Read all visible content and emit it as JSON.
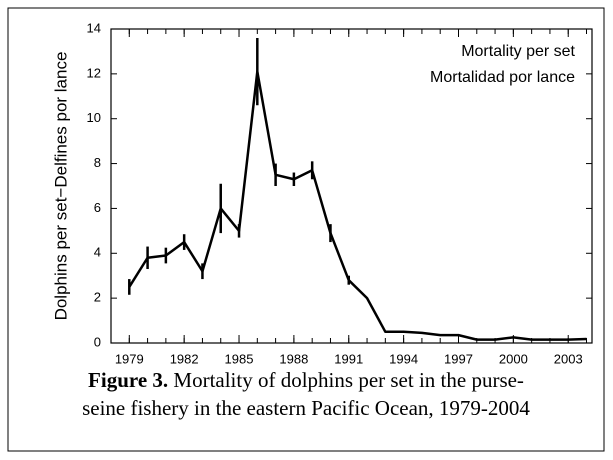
{
  "chart_data": {
    "type": "line",
    "ylabel": "Dolphins per set−Delfines por lance",
    "annotations": [
      "Mortality per set",
      "Mortalidad por lance"
    ],
    "caption_label": "Figure 3.",
    "caption_lines": [
      "Mortality of dolphins per set in the purse-",
      "seine fishery in the eastern Pacific Ocean, 1979-2004"
    ],
    "x": [
      1979,
      1980,
      1981,
      1982,
      1983,
      1984,
      1985,
      1986,
      1987,
      1988,
      1989,
      1990,
      1991,
      1992,
      1993,
      1994,
      1995,
      1996,
      1997,
      1998,
      1999,
      2000,
      2001,
      2002,
      2003,
      2004
    ],
    "values": [
      2.5,
      3.8,
      3.9,
      4.5,
      3.2,
      6.0,
      5.0,
      12.1,
      7.5,
      7.3,
      7.7,
      4.9,
      2.8,
      2.0,
      0.5,
      0.5,
      0.45,
      0.35,
      0.35,
      0.15,
      0.15,
      0.25,
      0.15,
      0.15,
      0.15,
      0.18
    ],
    "errors": [
      0.35,
      0.5,
      0.35,
      0.35,
      0.35,
      1.1,
      0.3,
      1.5,
      0.5,
      0.3,
      0.4,
      0.4,
      0.2,
      null,
      null,
      null,
      null,
      null,
      null,
      null,
      null,
      null,
      null,
      null,
      null,
      null
    ],
    "color": "#000000",
    "xlim": [
      1978,
      2004.3
    ],
    "xticks": [
      1979,
      1982,
      1985,
      1988,
      1991,
      1994,
      1997,
      2000,
      2003
    ],
    "ylim": [
      0,
      14
    ],
    "yticks": [
      0,
      2,
      4,
      6,
      8,
      10,
      12,
      14
    ]
  }
}
